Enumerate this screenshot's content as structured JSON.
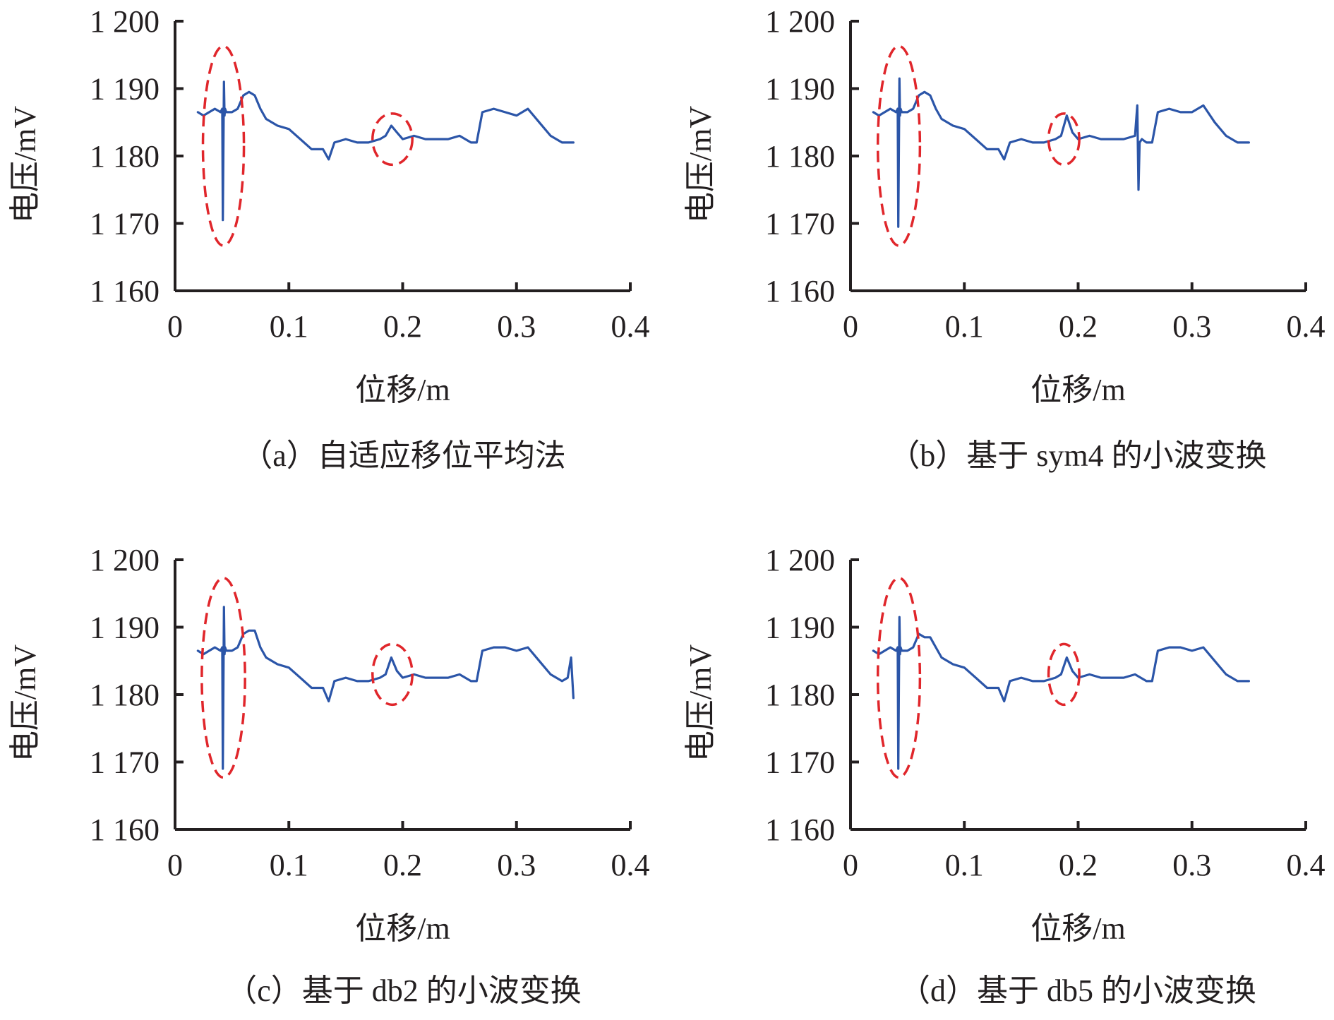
{
  "colors": {
    "series": "#2b55a8",
    "highlight": "#e0262b",
    "axis": "#231f20"
  },
  "panels": [
    {
      "caption": "（a）自适应移位平均法",
      "chart_data": {
        "type": "line",
        "xlabel": "位移/m",
        "ylabel": "电压/mV",
        "xlim": [
          0,
          0.4
        ],
        "ylim": [
          1160,
          1200
        ],
        "xticks": [
          0,
          0.1,
          0.2,
          0.3,
          0.4
        ],
        "xtick_labels": [
          "0",
          "0.1",
          "0.2",
          "0.3",
          "0.4"
        ],
        "yticks": [
          1160,
          1170,
          1180,
          1190,
          1200
        ],
        "ytick_labels": [
          "1 160",
          "1 170",
          "1 180",
          "1 190",
          "1 200"
        ],
        "grid": false,
        "series": [
          {
            "x": [
              0.02,
              0.025,
              0.03,
              0.035,
              0.04,
              0.0415,
              0.042,
              0.0425,
              0.043,
              0.0435,
              0.044,
              0.045,
              0.05,
              0.055,
              0.06,
              0.065,
              0.07,
              0.075,
              0.08,
              0.09,
              0.1,
              0.11,
              0.12,
              0.13,
              0.135,
              0.14,
              0.15,
              0.16,
              0.17,
              0.18,
              0.185,
              0.19,
              0.195,
              0.2,
              0.21,
              0.22,
              0.23,
              0.24,
              0.25,
              0.26,
              0.265,
              0.27,
              0.28,
              0.29,
              0.3,
              0.31,
              0.32,
              0.33,
              0.34,
              0.35
            ],
            "y": [
              1186.5,
              1186,
              1186.5,
              1187,
              1186.5,
              1187,
              1170.5,
              1181,
              1191,
              1186,
              1187,
              1186.5,
              1186.5,
              1187,
              1189,
              1189.5,
              1189,
              1187,
              1185.5,
              1184.5,
              1184,
              1182.5,
              1181,
              1181,
              1179.5,
              1182,
              1182.5,
              1182,
              1182,
              1182.5,
              1183,
              1184.5,
              1183.5,
              1182.5,
              1183,
              1182.5,
              1182.5,
              1182.5,
              1183,
              1182,
              1182,
              1186.5,
              1187,
              1186.5,
              1186,
              1187,
              1185,
              1183,
              1182,
              1182
            ]
          }
        ],
        "highlights": [
          {
            "cx": 0.0425,
            "cy": 1181.5,
            "rx": 0.018,
            "ry": 14.8
          },
          {
            "cx": 0.191,
            "cy": 1182.5,
            "rx": 0.0175,
            "ry": 3.8
          }
        ]
      }
    },
    {
      "caption": "（b）基于 sym4 的小波变换",
      "chart_data": {
        "type": "line",
        "xlabel": "位移/m",
        "ylabel": "电压/mV",
        "xlim": [
          0,
          0.4
        ],
        "ylim": [
          1160,
          1200
        ],
        "xticks": [
          0,
          0.1,
          0.2,
          0.3,
          0.4
        ],
        "xtick_labels": [
          "0",
          "0.1",
          "0.2",
          "0.3",
          "0.4"
        ],
        "yticks": [
          1160,
          1170,
          1180,
          1190,
          1200
        ],
        "ytick_labels": [
          "1 160",
          "1 170",
          "1 180",
          "1 190",
          "1 200"
        ],
        "grid": false,
        "series": [
          {
            "x": [
              0.02,
              0.025,
              0.03,
              0.035,
              0.04,
              0.0415,
              0.042,
              0.0425,
              0.043,
              0.0435,
              0.044,
              0.045,
              0.05,
              0.055,
              0.06,
              0.065,
              0.07,
              0.075,
              0.08,
              0.09,
              0.1,
              0.11,
              0.12,
              0.13,
              0.135,
              0.14,
              0.15,
              0.16,
              0.17,
              0.18,
              0.185,
              0.19,
              0.195,
              0.2,
              0.21,
              0.22,
              0.23,
              0.24,
              0.25,
              0.252,
              0.253,
              0.254,
              0.256,
              0.26,
              0.265,
              0.27,
              0.28,
              0.29,
              0.3,
              0.31,
              0.32,
              0.33,
              0.34,
              0.35
            ],
            "y": [
              1186.5,
              1186,
              1186.5,
              1187,
              1186.5,
              1187,
              1169.5,
              1181,
              1191.5,
              1186,
              1187,
              1186.5,
              1186.5,
              1187,
              1189,
              1189.5,
              1189,
              1187,
              1185.5,
              1184.5,
              1184,
              1182.5,
              1181,
              1181,
              1179.5,
              1182,
              1182.5,
              1182,
              1182,
              1182.5,
              1183,
              1186,
              1183.5,
              1182.5,
              1183,
              1182.5,
              1182.5,
              1182.5,
              1183,
              1187.5,
              1175,
              1182,
              1182.5,
              1182,
              1182,
              1186.5,
              1187,
              1186.5,
              1186.5,
              1187.5,
              1185,
              1183,
              1182,
              1182
            ]
          }
        ],
        "highlights": [
          {
            "cx": 0.0425,
            "cy": 1181.5,
            "rx": 0.0185,
            "ry": 14.8
          },
          {
            "cx": 0.1875,
            "cy": 1182.5,
            "rx": 0.0135,
            "ry": 3.8
          }
        ]
      }
    },
    {
      "caption": "（c）基于 db2 的小波变换",
      "chart_data": {
        "type": "line",
        "xlabel": "位移/m",
        "ylabel": "电压/mV",
        "xlim": [
          0,
          0.4
        ],
        "ylim": [
          1160,
          1200
        ],
        "xticks": [
          0,
          0.1,
          0.2,
          0.3,
          0.4
        ],
        "xtick_labels": [
          "0",
          "0.1",
          "0.2",
          "0.3",
          "0.4"
        ],
        "yticks": [
          1160,
          1170,
          1180,
          1190,
          1200
        ],
        "ytick_labels": [
          "1 160",
          "1 170",
          "1 180",
          "1 190",
          "1 200"
        ],
        "grid": false,
        "series": [
          {
            "x": [
              0.02,
              0.025,
              0.03,
              0.035,
              0.04,
              0.0415,
              0.042,
              0.0425,
              0.043,
              0.0435,
              0.044,
              0.045,
              0.05,
              0.055,
              0.06,
              0.065,
              0.07,
              0.075,
              0.08,
              0.09,
              0.1,
              0.11,
              0.12,
              0.13,
              0.135,
              0.14,
              0.15,
              0.16,
              0.17,
              0.18,
              0.185,
              0.19,
              0.195,
              0.2,
              0.21,
              0.22,
              0.23,
              0.24,
              0.25,
              0.26,
              0.265,
              0.27,
              0.28,
              0.29,
              0.3,
              0.31,
              0.32,
              0.33,
              0.34,
              0.345,
              0.348,
              0.35
            ],
            "y": [
              1186.5,
              1186,
              1186.5,
              1187,
              1186.5,
              1187,
              1169,
              1181,
              1193,
              1186,
              1187,
              1186.5,
              1186.5,
              1187,
              1189,
              1189.5,
              1189.5,
              1187,
              1185.5,
              1184.5,
              1184,
              1182.5,
              1181,
              1181,
              1179,
              1182,
              1182.5,
              1182,
              1182,
              1182.5,
              1183,
              1185.5,
              1183.5,
              1182.5,
              1183,
              1182.5,
              1182.5,
              1182.5,
              1183,
              1182,
              1182,
              1186.5,
              1187,
              1187,
              1186.5,
              1187,
              1185,
              1183,
              1182,
              1182.5,
              1185.5,
              1179.5
            ]
          }
        ],
        "highlights": [
          {
            "cx": 0.0425,
            "cy": 1182.5,
            "rx": 0.019,
            "ry": 14.8
          },
          {
            "cx": 0.191,
            "cy": 1183,
            "rx": 0.0175,
            "ry": 4.5
          }
        ]
      }
    },
    {
      "caption": "（d）基于 db5 的小波变换",
      "chart_data": {
        "type": "line",
        "xlabel": "位移/m",
        "ylabel": "电压/mV",
        "xlim": [
          0,
          0.4
        ],
        "ylim": [
          1160,
          1200
        ],
        "xticks": [
          0,
          0.1,
          0.2,
          0.3,
          0.4
        ],
        "xtick_labels": [
          "0",
          "0.1",
          "0.2",
          "0.3",
          "0.4"
        ],
        "yticks": [
          1160,
          1170,
          1180,
          1190,
          1200
        ],
        "ytick_labels": [
          "1 160",
          "1 170",
          "1 180",
          "1 190",
          "1 200"
        ],
        "grid": false,
        "series": [
          {
            "x": [
              0.02,
              0.025,
              0.03,
              0.035,
              0.04,
              0.0415,
              0.042,
              0.0425,
              0.043,
              0.0435,
              0.044,
              0.045,
              0.05,
              0.055,
              0.06,
              0.065,
              0.07,
              0.075,
              0.08,
              0.09,
              0.1,
              0.11,
              0.12,
              0.13,
              0.135,
              0.14,
              0.15,
              0.16,
              0.17,
              0.18,
              0.185,
              0.19,
              0.195,
              0.2,
              0.21,
              0.22,
              0.23,
              0.24,
              0.25,
              0.26,
              0.265,
              0.27,
              0.28,
              0.29,
              0.3,
              0.31,
              0.32,
              0.33,
              0.34,
              0.35
            ],
            "y": [
              1186.5,
              1186,
              1186.5,
              1187,
              1186.5,
              1187,
              1169,
              1181,
              1191.5,
              1186,
              1187,
              1186.5,
              1186.5,
              1187,
              1189,
              1188.5,
              1188.5,
              1187,
              1185.5,
              1184.5,
              1184,
              1182.5,
              1181,
              1181,
              1179,
              1182,
              1182.5,
              1182,
              1182,
              1182.5,
              1183,
              1185.5,
              1183.5,
              1182.5,
              1183,
              1182.5,
              1182.5,
              1182.5,
              1183,
              1182,
              1182,
              1186.5,
              1187,
              1187,
              1186.5,
              1187,
              1185,
              1183,
              1182,
              1182
            ]
          }
        ],
        "highlights": [
          {
            "cx": 0.0425,
            "cy": 1182.5,
            "rx": 0.0185,
            "ry": 14.8
          },
          {
            "cx": 0.1875,
            "cy": 1183,
            "rx": 0.0135,
            "ry": 4.5
          }
        ]
      }
    }
  ]
}
